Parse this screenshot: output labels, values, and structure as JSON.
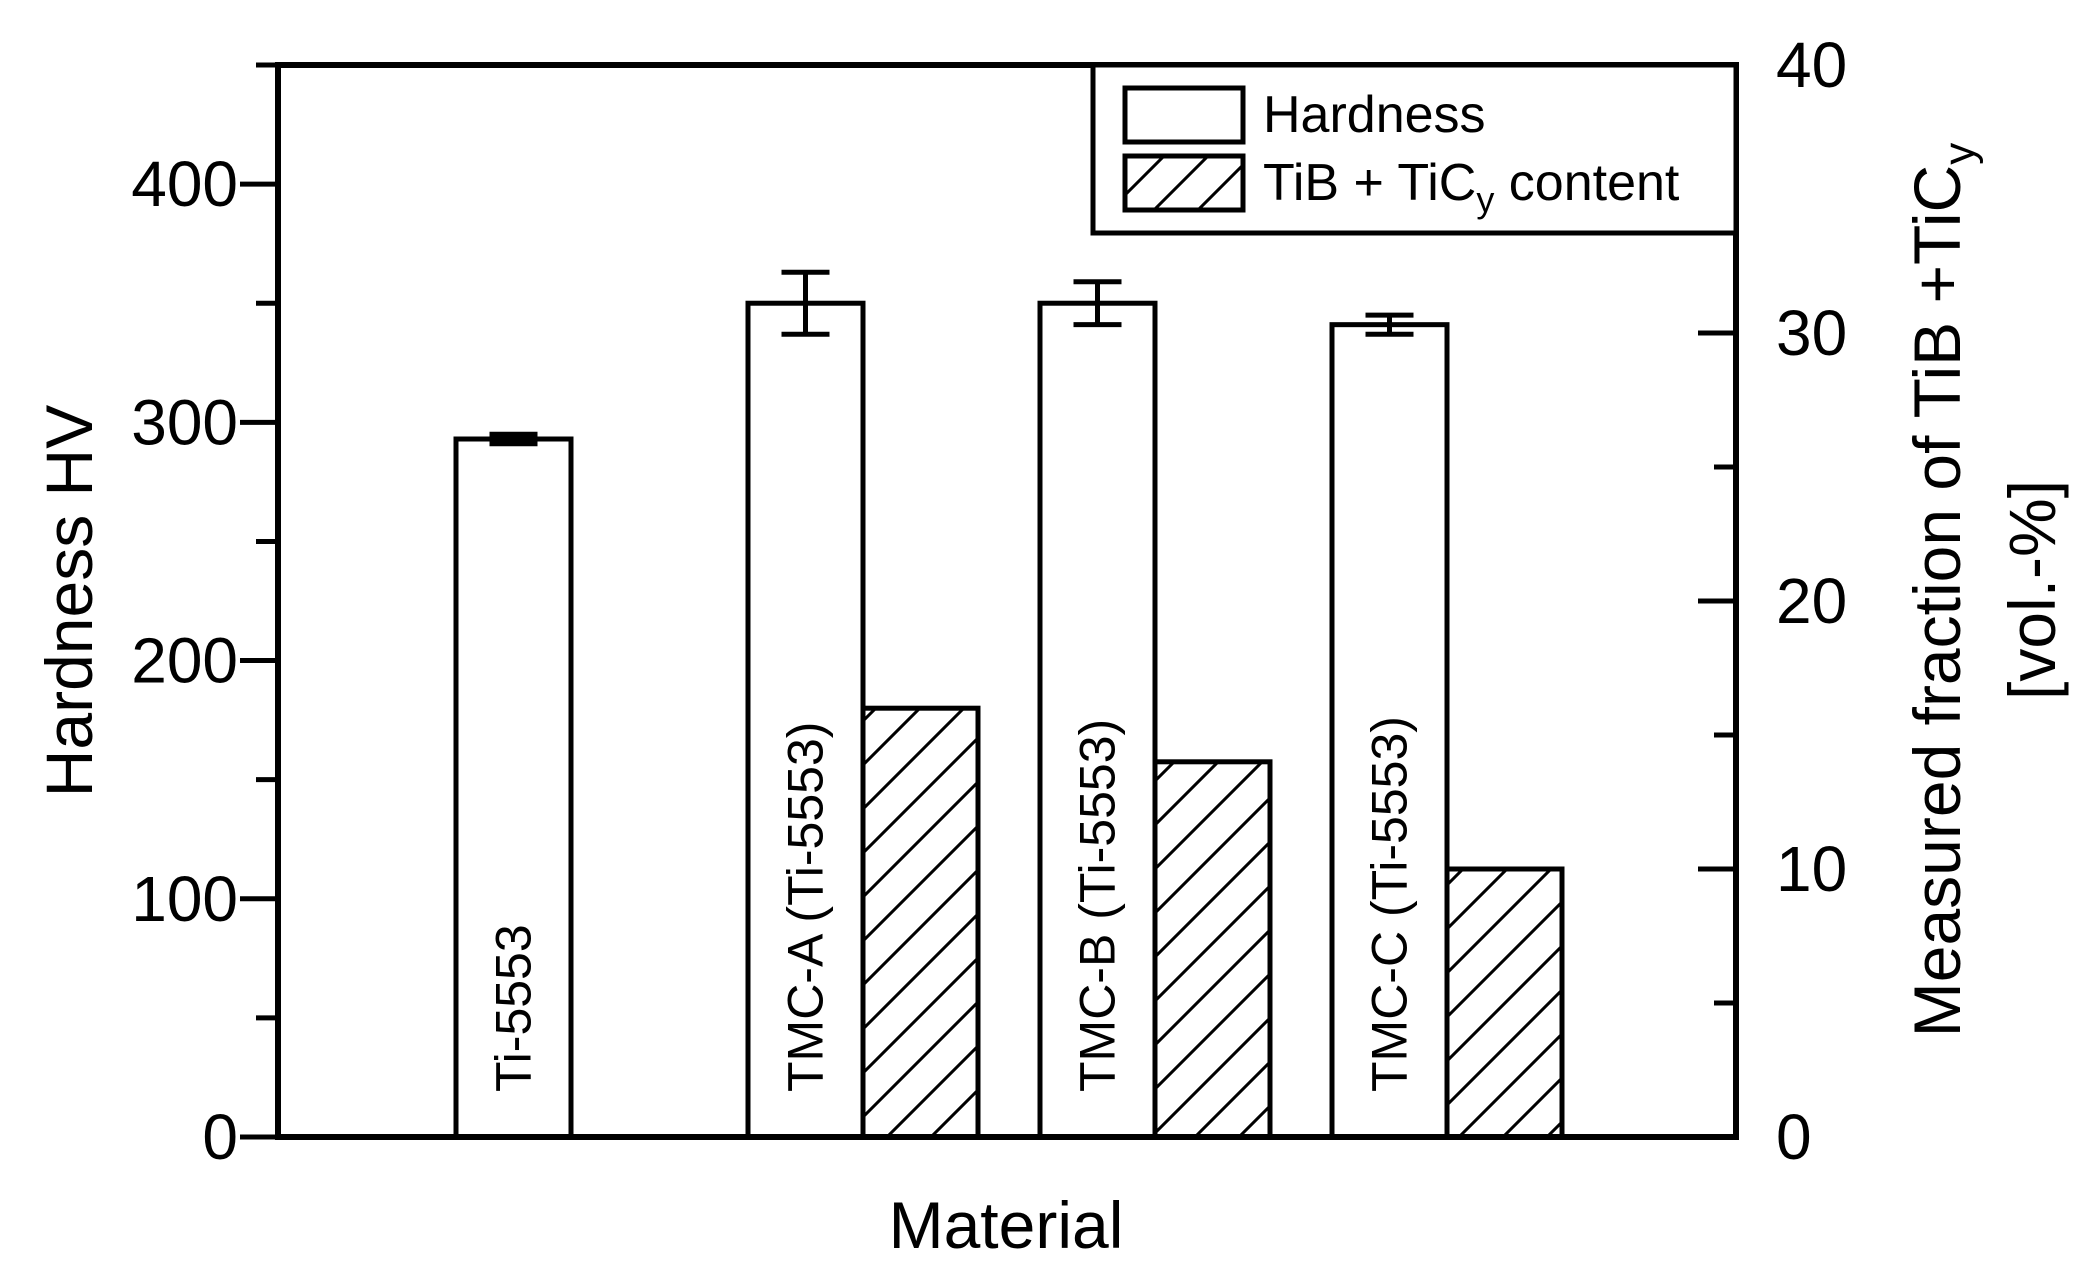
{
  "chart_data": {
    "type": "bar",
    "xlabel": "Material",
    "ylabel": "Hardness HV",
    "y2label": {
      "line1_prefix": "Measured fraction of TiB +TiC",
      "line1_sub": "y",
      "line2": "[vol.-%]"
    },
    "ylim": [
      0,
      450
    ],
    "yticks": [
      "0",
      "100",
      "200",
      "300",
      "400"
    ],
    "y2lim": [
      0,
      40
    ],
    "y2ticks": [
      "0",
      "10",
      "20",
      "30",
      "40"
    ],
    "categories": [
      "Ti-5553",
      "TMC-A (Ti-5553)",
      "TMC-B (Ti-5553)",
      "TMC-C (Ti-5553)"
    ],
    "series": [
      {
        "name": "Hardness",
        "axis": "left",
        "pattern": "none",
        "values": [
          293,
          350,
          350,
          341
        ],
        "errors": [
          2,
          13,
          9,
          4
        ]
      },
      {
        "name": "TiB + TiCy content",
        "axis": "right",
        "pattern": "hatch",
        "values": [
          null,
          16,
          14,
          10
        ]
      }
    ],
    "legend": {
      "position": "top-right",
      "entries": [
        {
          "text": "Hardness"
        },
        {
          "prefix": "TiB + TiC",
          "sub": "y",
          "suffix": " content"
        }
      ]
    },
    "grid": false,
    "colors": {
      "bar_fill": "#ffffff",
      "stroke": "#000000"
    }
  }
}
